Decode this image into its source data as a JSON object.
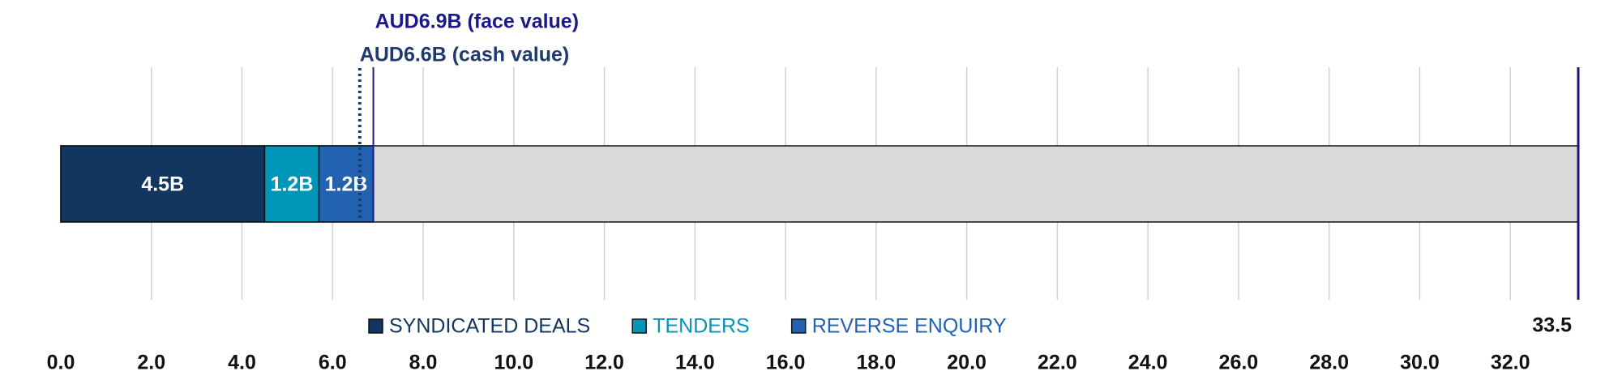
{
  "chart_data": {
    "type": "stacked-bar-h",
    "xlim": [
      0,
      33.5
    ],
    "xticks": [
      {
        "value": 0,
        "label": "0.0"
      },
      {
        "value": 2,
        "label": "2.0"
      },
      {
        "value": 4,
        "label": "4.0"
      },
      {
        "value": 6,
        "label": "6.0"
      },
      {
        "value": 8,
        "label": "8.0"
      },
      {
        "value": 10,
        "label": "10.0"
      },
      {
        "value": 12,
        "label": "12.0"
      },
      {
        "value": 14,
        "label": "14.0"
      },
      {
        "value": 16,
        "label": "16.0"
      },
      {
        "value": 18,
        "label": "18.0"
      },
      {
        "value": 20,
        "label": "20.0"
      },
      {
        "value": 22,
        "label": "22.0"
      },
      {
        "value": 24,
        "label": "24.0"
      },
      {
        "value": 26,
        "label": "26.0"
      },
      {
        "value": 28,
        "label": "28.0"
      },
      {
        "value": 30,
        "label": "30.0"
      },
      {
        "value": 32,
        "label": "32.0"
      }
    ],
    "grid": true,
    "target": 33.5,
    "track_color": "#d9d9d9",
    "series": [
      {
        "name": "SYNDICATED DEALS",
        "color": "#12365f",
        "values": [
          4.5
        ],
        "value_labels": [
          "4.5B"
        ]
      },
      {
        "name": "TENDERS",
        "color": "#0096b8",
        "values": [
          1.2
        ],
        "value_labels": [
          "1.2B"
        ]
      },
      {
        "name": "REVERSE ENQUIRY",
        "color": "#2362b0",
        "values": [
          1.2
        ],
        "value_labels": [
          "1.2B"
        ]
      }
    ],
    "annotations": [
      {
        "text": "AUD6.9B (face value)",
        "value": 6.9,
        "style": "solid",
        "color": "#1a1a8c"
      },
      {
        "text": "AUD6.6B (cash value)",
        "value": 6.6,
        "style": "dotted",
        "color": "#1f3a6e"
      }
    ]
  }
}
